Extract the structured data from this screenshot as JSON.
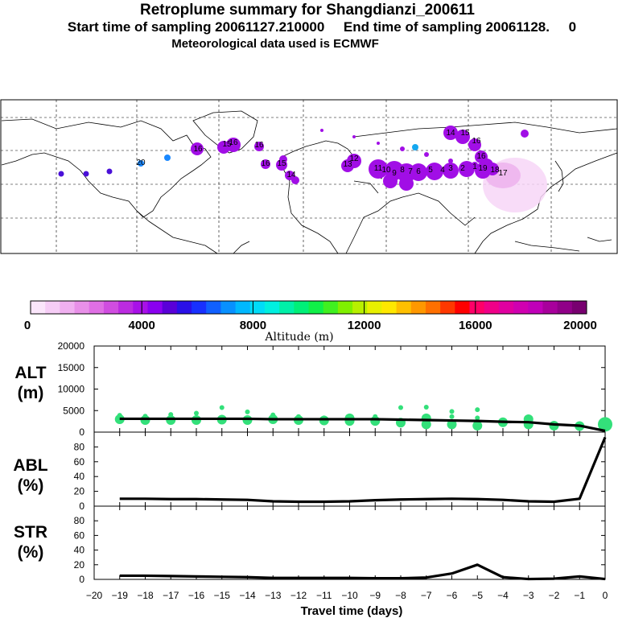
{
  "header": {
    "title": "Retroplume summary for Shangdianzi_200611",
    "line2": "Start time of sampling 20061127.210000     End time of sampling 20061128.     0",
    "line3": "Meteorological data used is ECMWF"
  },
  "colorbar": {
    "ticks": [
      "0",
      "4000",
      "8000",
      "12000",
      "16000",
      "20000"
    ],
    "label": "Altitude (m)",
    "colors": [
      "#fbe6fb",
      "#f6cdf6",
      "#f0b0f0",
      "#e890e8",
      "#df6fe4",
      "#d04de0",
      "#bb2be0",
      "#a810e8",
      "#8a00f0",
      "#5a00d8",
      "#2a10e8",
      "#1830ff",
      "#1060ff",
      "#0890ff",
      "#00b8ff",
      "#00dcf8",
      "#00f0e0",
      "#00f0a8",
      "#00f078",
      "#10f048",
      "#40f020",
      "#80f000",
      "#b8f000",
      "#e8f000",
      "#ffe800",
      "#ffc000",
      "#ff9800",
      "#ff7000",
      "#ff3800",
      "#ff0000",
      "#ff0068",
      "#f00088",
      "#e000a0",
      "#d000b0",
      "#c000b8",
      "#a8009c",
      "#900088",
      "#780070"
    ]
  },
  "map": {
    "labels": [
      "14",
      "15",
      "16",
      "16",
      "16",
      "15",
      "16",
      "16",
      "16",
      "15",
      "14",
      "13",
      "12",
      "11",
      "10",
      "9",
      "8",
      "7",
      "6",
      "5",
      "4",
      "3",
      "2",
      "1",
      "19",
      "18",
      "17",
      "20"
    ]
  },
  "chart_data": [
    {
      "type": "line",
      "panel": "ALT",
      "ylabel": "ALT\n(m)",
      "ylabel_lines": [
        "ALT",
        "(m)"
      ],
      "xlim": [
        -20,
        0
      ],
      "ylim": [
        0,
        20000
      ],
      "yticks": [
        0,
        5000,
        10000,
        15000,
        20000
      ],
      "x": [
        -19,
        -18,
        -17,
        -16,
        -15,
        -14,
        -13,
        -12,
        -11,
        -10,
        -9,
        -8,
        -7,
        -6,
        -5,
        -4,
        -3,
        -2,
        -1,
        0
      ],
      "values": [
        3100,
        3100,
        3100,
        3100,
        3100,
        3100,
        3000,
        3000,
        3000,
        3000,
        3000,
        2900,
        2800,
        2700,
        2600,
        2400,
        2300,
        1800,
        1500,
        300
      ],
      "scatter": [
        {
          "x": -19,
          "y": 3000
        },
        {
          "x": -19,
          "y": 3900
        },
        {
          "x": -18,
          "y": 2800
        },
        {
          "x": -18,
          "y": 3700
        },
        {
          "x": -17,
          "y": 2800
        },
        {
          "x": -17,
          "y": 4100
        },
        {
          "x": -16,
          "y": 2800
        },
        {
          "x": -16,
          "y": 4400
        },
        {
          "x": -15,
          "y": 2900
        },
        {
          "x": -15,
          "y": 5700
        },
        {
          "x": -14,
          "y": 2800
        },
        {
          "x": -14,
          "y": 4700
        },
        {
          "x": -13,
          "y": 3000
        },
        {
          "x": -13,
          "y": 4000
        },
        {
          "x": -12,
          "y": 2800
        },
        {
          "x": -12,
          "y": 3600
        },
        {
          "x": -11,
          "y": 2700
        },
        {
          "x": -11,
          "y": 3300
        },
        {
          "x": -10,
          "y": 2600
        },
        {
          "x": -10,
          "y": 3200
        },
        {
          "x": -9,
          "y": 2600
        },
        {
          "x": -9,
          "y": 3600
        },
        {
          "x": -8,
          "y": 2200
        },
        {
          "x": -8,
          "y": 5700
        },
        {
          "x": -7,
          "y": 1800
        },
        {
          "x": -7,
          "y": 3200
        },
        {
          "x": -7,
          "y": 5800
        },
        {
          "x": -6,
          "y": 1800
        },
        {
          "x": -6,
          "y": 3600
        },
        {
          "x": -6,
          "y": 4800
        },
        {
          "x": -5,
          "y": 1500
        },
        {
          "x": -5,
          "y": 3300
        },
        {
          "x": -5,
          "y": 5200
        },
        {
          "x": -4,
          "y": 2300
        },
        {
          "x": -3,
          "y": 1800
        },
        {
          "x": -3,
          "y": 3000
        },
        {
          "x": -2,
          "y": 1500
        },
        {
          "x": -1,
          "y": 1400
        },
        {
          "x": 0,
          "y": 1800
        }
      ]
    },
    {
      "type": "line",
      "panel": "ABL",
      "ylabel": "ABL\n(%)",
      "ylabel_lines": [
        "ABL",
        "(%)"
      ],
      "xlim": [
        -20,
        0
      ],
      "ylim": [
        0,
        100
      ],
      "yticks": [
        0,
        20,
        40,
        60,
        80
      ],
      "x": [
        -19,
        -18,
        -17,
        -16,
        -15,
        -14,
        -13,
        -12,
        -11,
        -10,
        -9,
        -8,
        -7,
        -6,
        -5,
        -4,
        -3,
        -2,
        -1,
        0
      ],
      "values": [
        10,
        10,
        9.5,
        9.5,
        9,
        8.5,
        6.5,
        6,
        6,
        6.5,
        8,
        9,
        9.5,
        10,
        9.5,
        8.5,
        6.5,
        6,
        10,
        93
      ]
    },
    {
      "type": "line",
      "panel": "STR",
      "ylabel": "STR\n(%)",
      "ylabel_lines": [
        "STR",
        "(%)"
      ],
      "xlim": [
        -20,
        0
      ],
      "ylim": [
        0,
        100
      ],
      "yticks": [
        0,
        20,
        40,
        60,
        80
      ],
      "x": [
        -19,
        -18,
        -17,
        -16,
        -15,
        -14,
        -13,
        -12,
        -11,
        -10,
        -9,
        -8,
        -7,
        -6,
        -5,
        -4,
        -3,
        -2,
        -1,
        0
      ],
      "values": [
        5,
        5,
        4.5,
        4,
        3.5,
        3,
        2,
        2,
        2,
        2,
        1.5,
        1.5,
        2.5,
        8,
        20,
        3,
        0.5,
        1,
        4,
        0.5
      ],
      "xlabel": "Travel time (days)",
      "xticks": [
        "-20",
        "-19",
        "-18",
        "-17",
        "-16",
        "-15",
        "-14",
        "-13",
        "-12",
        "-11",
        "-10",
        "-9",
        "-8",
        "-7",
        "-6",
        "-5",
        "-4",
        "-3",
        "-2",
        "-1",
        "0"
      ]
    }
  ]
}
